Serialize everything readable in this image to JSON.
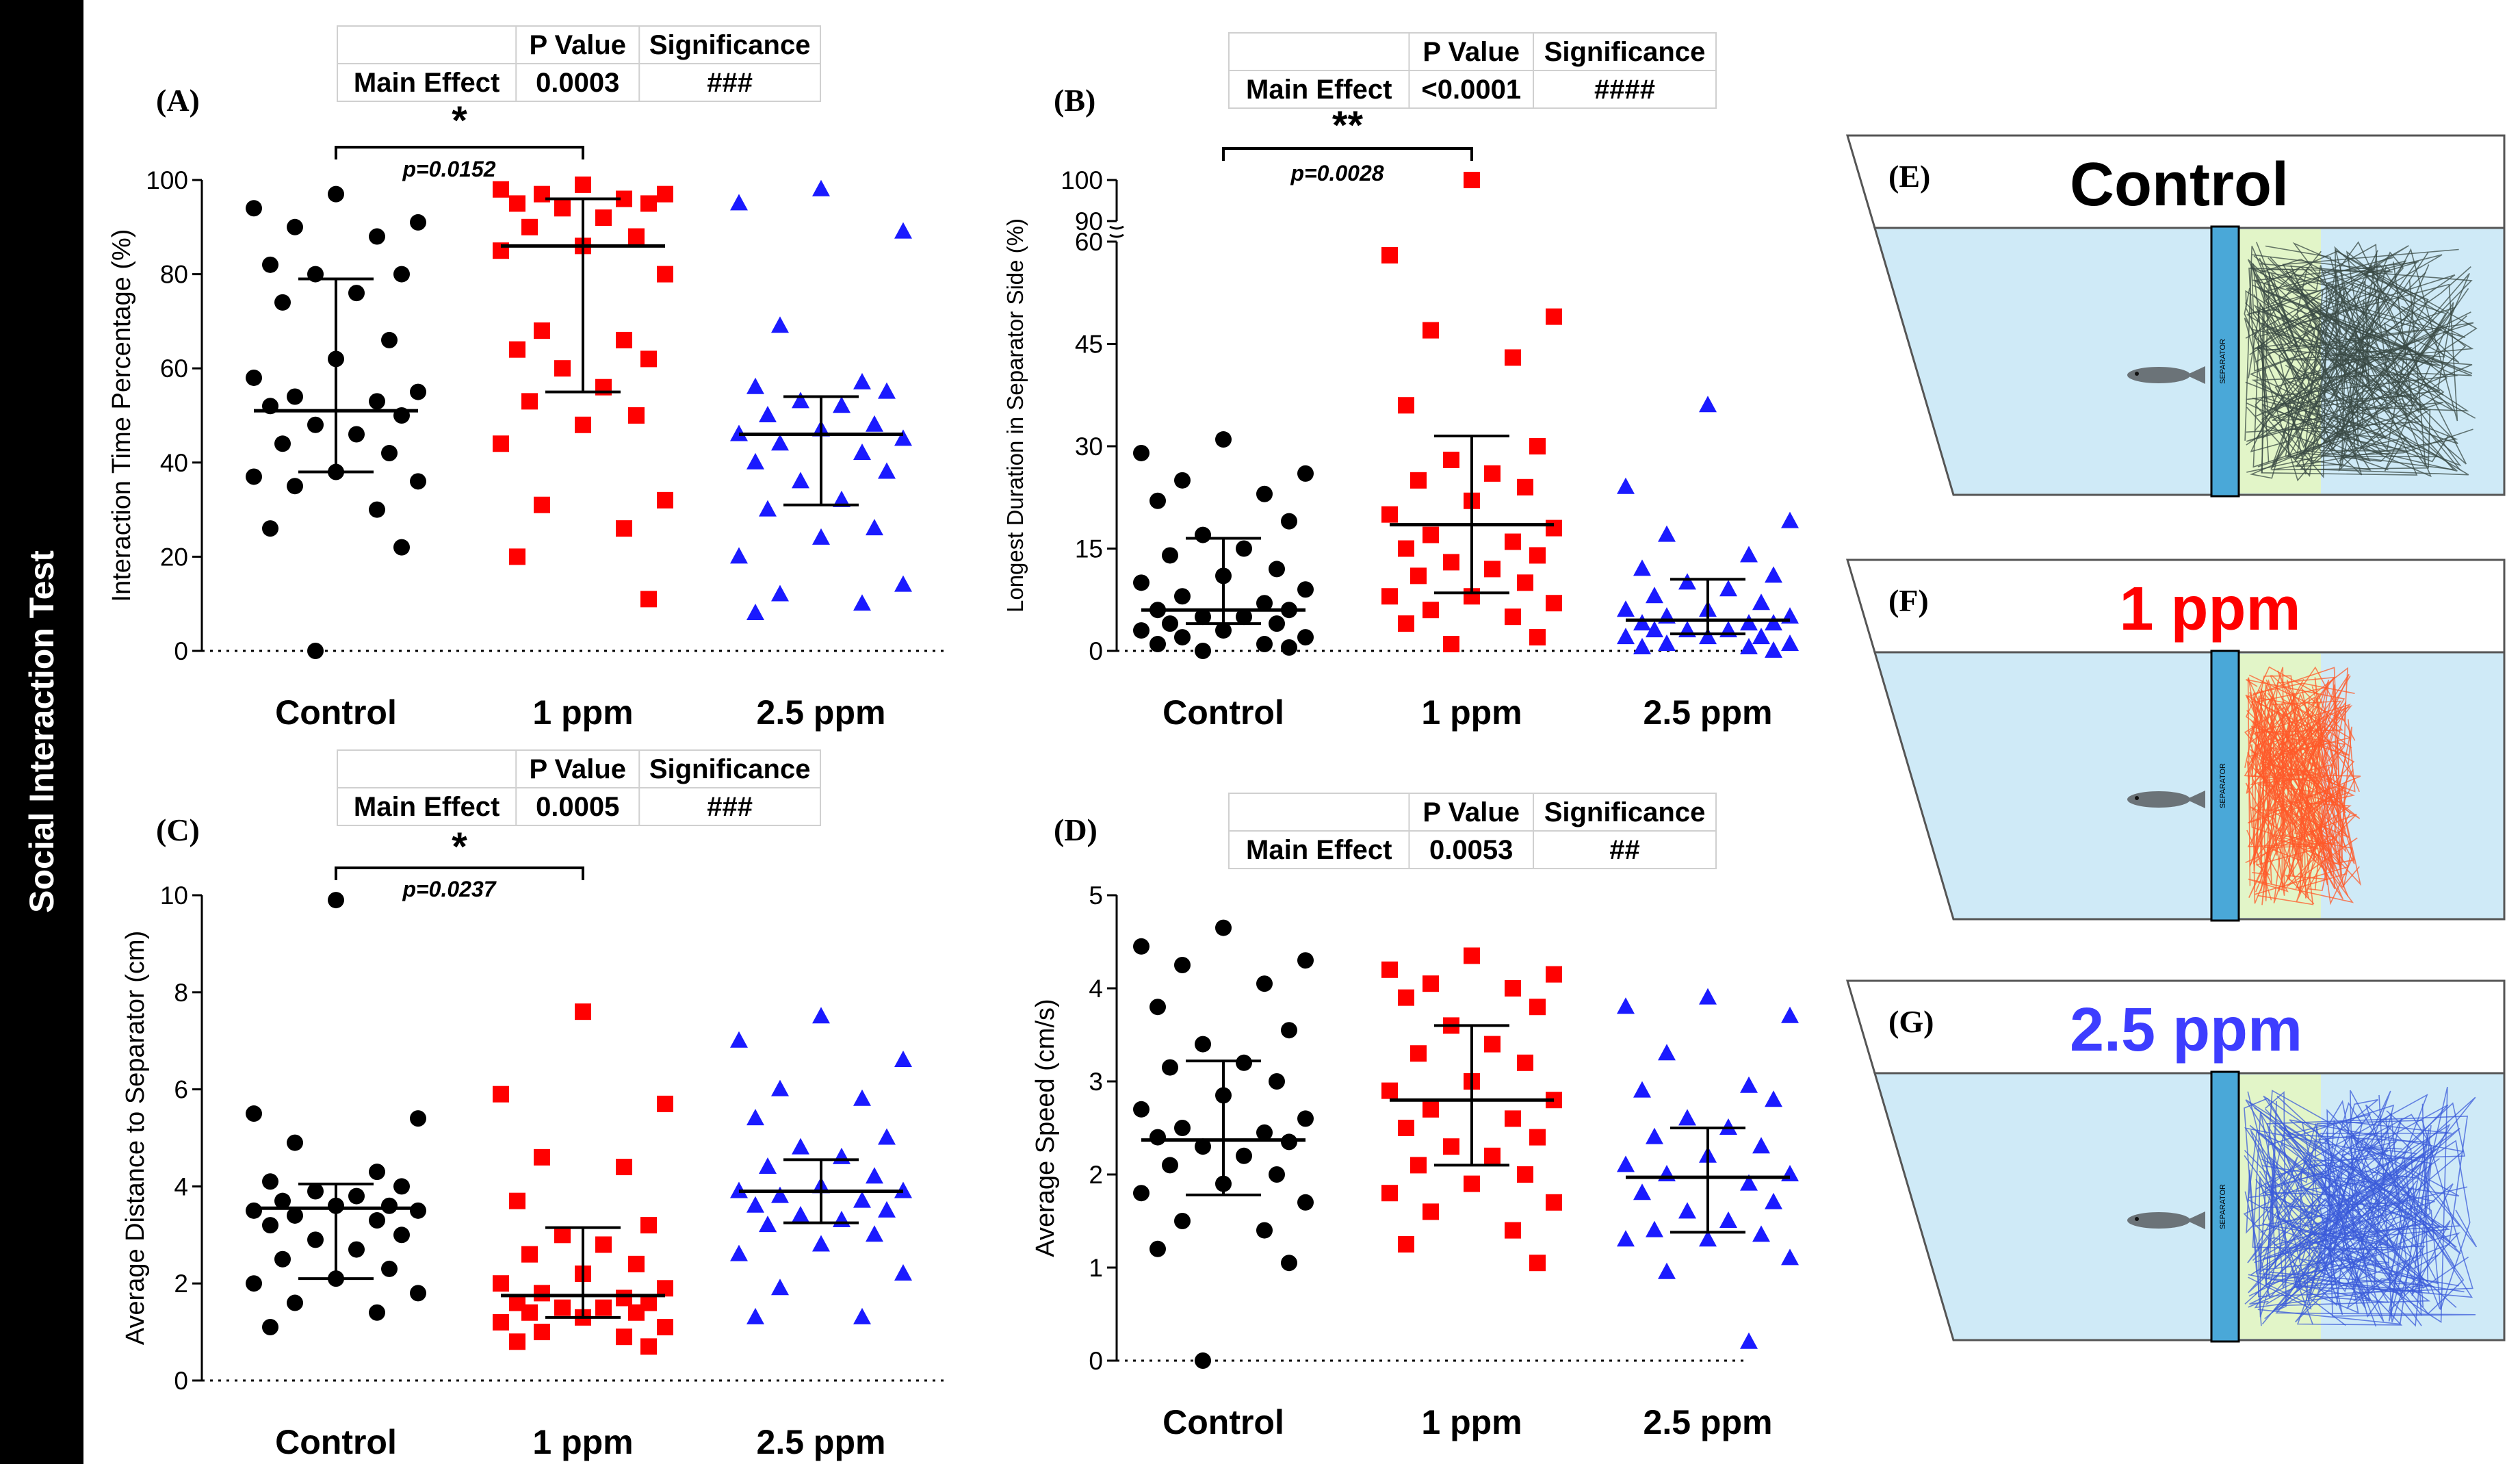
{
  "sidebar": {
    "label": "Social Interaction Test"
  },
  "categories": [
    "Control",
    "1 ppm",
    "2.5 ppm"
  ],
  "colors": {
    "control": "#000000",
    "ppm1": "#ff0000",
    "ppm25": "#1a1aff",
    "tank": "#cfeaf7",
    "zone": "#e2f5c8",
    "separator": "#4aa8d8"
  },
  "chart_data": [
    {
      "id": "A",
      "type": "scatter",
      "panel_label": "(A)",
      "ylabel": "Interaction Time Percentage (%)",
      "ylim": [
        0,
        100
      ],
      "yticks": [
        0,
        20,
        40,
        60,
        80,
        100
      ],
      "categories": [
        "Control",
        "1 ppm",
        "2.5 ppm"
      ],
      "series": [
        {
          "name": "Control",
          "values": [
            97,
            94,
            91,
            90,
            88,
            82,
            80,
            80,
            76,
            74,
            66,
            62,
            58,
            55,
            54,
            53,
            52,
            50,
            48,
            46,
            44,
            42,
            38,
            37,
            36,
            35,
            30,
            26,
            22,
            0
          ],
          "median": 51,
          "iqr": [
            38,
            79
          ]
        },
        {
          "name": "1 ppm",
          "values": [
            99,
            98,
            97,
            97,
            96,
            95,
            95,
            94,
            92,
            90,
            88,
            86,
            85,
            80,
            68,
            66,
            64,
            62,
            60,
            56,
            53,
            50,
            48,
            44,
            32,
            31,
            26,
            20,
            11
          ],
          "median": 86,
          "iqr": [
            55,
            96
          ]
        },
        {
          "name": "2.5 ppm",
          "values": [
            98,
            95,
            89,
            69,
            57,
            56,
            55,
            53,
            52,
            50,
            48,
            47,
            46,
            45,
            44,
            42,
            40,
            38,
            36,
            32,
            30,
            26,
            24,
            20,
            14,
            12,
            10,
            8
          ],
          "median": 46,
          "iqr": [
            31,
            54
          ]
        }
      ],
      "stats": {
        "header_p": "P Value",
        "header_sig": "Significance",
        "row_label": "Main Effect",
        "p_value": "0.0003",
        "significance": "###"
      },
      "comparison": {
        "from": 0,
        "to": 1,
        "stars": "*",
        "p_text": "p=0.0152"
      }
    },
    {
      "id": "B",
      "type": "scatter",
      "panel_label": "(B)",
      "ylabel": "Longest  Duration in Separator Side (%)",
      "ylim": [
        0,
        100
      ],
      "axis_break": [
        60,
        90
      ],
      "yticks": [
        0,
        15,
        30,
        45,
        60,
        90,
        100
      ],
      "categories": [
        "Control",
        "1 ppm",
        "2.5 ppm"
      ],
      "series": [
        {
          "name": "Control",
          "values": [
            31,
            29,
            26,
            25,
            23,
            22,
            19,
            17,
            15,
            14,
            12,
            11,
            10,
            9,
            8,
            7,
            6,
            6,
            5,
            5,
            4,
            4,
            3,
            3,
            2,
            2,
            1,
            1,
            0.5,
            0
          ],
          "median": 6,
          "iqr": [
            4,
            16.5
          ]
        },
        {
          "name": "1 ppm",
          "values": [
            100,
            58,
            49,
            47,
            43,
            36,
            30,
            28,
            26,
            25,
            24,
            22,
            20,
            18,
            17,
            16,
            15,
            14,
            13,
            12,
            11,
            10,
            8,
            8,
            7,
            6,
            5,
            4,
            2,
            1
          ],
          "median": 18.5,
          "iqr": [
            8.5,
            31.5
          ]
        },
        {
          "name": "2.5 ppm",
          "values": [
            36,
            24,
            19,
            17,
            14,
            12,
            11,
            10,
            9,
            8,
            7,
            6,
            6,
            5,
            5,
            4,
            4,
            4,
            3,
            3,
            3,
            2,
            2,
            2,
            1,
            1,
            0.5,
            0.5,
            0
          ],
          "median": 4.5,
          "iqr": [
            2.5,
            10.5
          ]
        }
      ],
      "stats": {
        "header_p": "P Value",
        "header_sig": "Significance",
        "row_label": "Main Effect",
        "p_value": "<0.0001",
        "significance": "####"
      },
      "comparison": {
        "from": 0,
        "to": 1,
        "stars": "**",
        "p_text": "p=0.0028"
      }
    },
    {
      "id": "C",
      "type": "scatter",
      "panel_label": "(C)",
      "ylabel": "Average Distance to Separator (cm)",
      "ylim": [
        0,
        10
      ],
      "yticks": [
        0,
        2,
        4,
        6,
        8,
        10
      ],
      "categories": [
        "Control",
        "1 ppm",
        "2.5 ppm"
      ],
      "series": [
        {
          "name": "Control",
          "values": [
            9.9,
            5.5,
            5.4,
            4.9,
            4.3,
            4.1,
            4.0,
            3.9,
            3.8,
            3.7,
            3.6,
            3.6,
            3.5,
            3.5,
            3.4,
            3.3,
            3.2,
            3.0,
            2.9,
            2.7,
            2.5,
            2.3,
            2.1,
            2.0,
            1.8,
            1.6,
            1.4,
            1.1
          ],
          "median": 3.55,
          "iqr": [
            2.1,
            4.05
          ]
        },
        {
          "name": "1 ppm",
          "values": [
            7.6,
            5.9,
            5.7,
            4.6,
            4.4,
            3.7,
            3.2,
            3.0,
            2.8,
            2.6,
            2.4,
            2.2,
            2.0,
            1.9,
            1.8,
            1.7,
            1.6,
            1.6,
            1.5,
            1.5,
            1.4,
            1.4,
            1.3,
            1.2,
            1.1,
            1.0,
            0.9,
            0.8,
            0.7
          ],
          "median": 1.75,
          "iqr": [
            1.3,
            3.15
          ]
        },
        {
          "name": "2.5 ppm",
          "values": [
            7.5,
            7.0,
            6.6,
            6.0,
            5.8,
            5.4,
            5.0,
            4.8,
            4.6,
            4.4,
            4.2,
            4.0,
            3.9,
            3.9,
            3.8,
            3.7,
            3.6,
            3.5,
            3.4,
            3.3,
            3.2,
            3.0,
            2.8,
            2.6,
            2.2,
            1.9,
            1.3,
            1.3
          ],
          "median": 3.9,
          "iqr": [
            3.25,
            4.55
          ]
        }
      ],
      "stats": {
        "header_p": "P Value",
        "header_sig": "Significance",
        "row_label": "Main Effect",
        "p_value": "0.0005",
        "significance": "###"
      },
      "comparison": {
        "from": 0,
        "to": 1,
        "stars": "*",
        "p_text": "p=0.0237"
      }
    },
    {
      "id": "D",
      "type": "scatter",
      "panel_label": "(D)",
      "ylabel": "Average Speed (cm/s)",
      "ylim": [
        0,
        5
      ],
      "yticks": [
        0,
        1,
        2,
        3,
        4,
        5
      ],
      "categories": [
        "Control",
        "1 ppm",
        "2.5 ppm"
      ],
      "series": [
        {
          "name": "Control",
          "values": [
            4.65,
            4.45,
            4.3,
            4.25,
            4.05,
            3.8,
            3.55,
            3.4,
            3.2,
            3.15,
            3.0,
            2.85,
            2.7,
            2.6,
            2.5,
            2.45,
            2.4,
            2.35,
            2.3,
            2.2,
            2.1,
            2.0,
            1.9,
            1.8,
            1.7,
            1.5,
            1.4,
            1.2,
            1.05,
            0.0
          ],
          "median": 2.37,
          "iqr": [
            1.78,
            3.22
          ]
        },
        {
          "name": "1 ppm",
          "values": [
            4.35,
            4.2,
            4.15,
            4.05,
            4.0,
            3.9,
            3.8,
            3.6,
            3.4,
            3.3,
            3.2,
            3.0,
            2.9,
            2.8,
            2.7,
            2.6,
            2.5,
            2.4,
            2.3,
            2.2,
            2.1,
            2.0,
            1.9,
            1.8,
            1.7,
            1.6,
            1.4,
            1.25,
            1.05
          ],
          "median": 2.8,
          "iqr": [
            2.1,
            3.6
          ]
        },
        {
          "name": "2.5 ppm",
          "values": [
            3.9,
            3.8,
            3.7,
            3.3,
            2.95,
            2.9,
            2.8,
            2.6,
            2.5,
            2.4,
            2.3,
            2.2,
            2.1,
            2.0,
            2.0,
            1.9,
            1.8,
            1.7,
            1.6,
            1.5,
            1.4,
            1.35,
            1.3,
            1.3,
            1.1,
            0.95,
            0.2
          ],
          "median": 1.97,
          "iqr": [
            1.38,
            2.5
          ]
        }
      ],
      "stats": {
        "header_p": "P Value",
        "header_sig": "Significance",
        "row_label": "Main Effect",
        "p_value": "0.0053",
        "significance": "##"
      },
      "comparison": null
    }
  ],
  "track_panels": [
    {
      "id": "E",
      "label": "(E)",
      "title": "Control",
      "title_color": "#000000",
      "trace_color": "#3a4a44",
      "separator_text": "SEPARATOR"
    },
    {
      "id": "F",
      "label": "(F)",
      "title": "1 ppm",
      "title_color": "#ff0000",
      "trace_color": "#ff5a2a",
      "separator_text": "SEPARATOR"
    },
    {
      "id": "G",
      "label": "(G)",
      "title": "2.5 ppm",
      "title_color": "#3d3dff",
      "trace_color": "#3b5bd9",
      "separator_text": "SEPARATOR"
    }
  ]
}
